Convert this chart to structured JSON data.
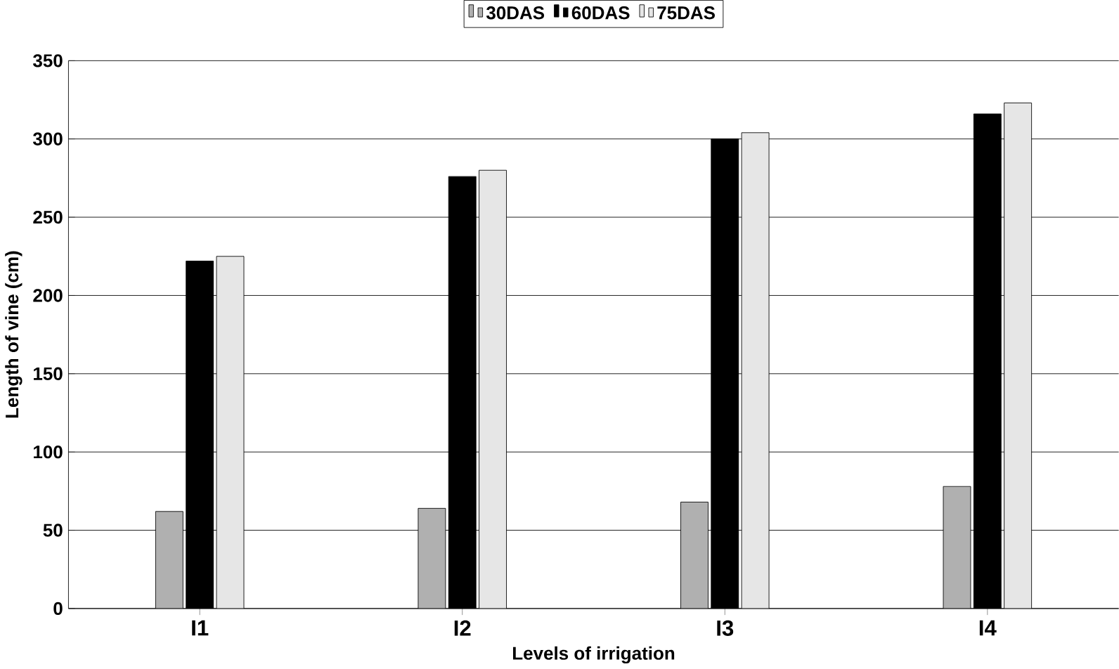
{
  "chart_data": {
    "type": "bar",
    "xlabel": "Levels of irrigation",
    "ylabel": "Length of vine (cm)",
    "categories": [
      "I1",
      "I2",
      "I3",
      "I4"
    ],
    "series": [
      {
        "name": "30DAS",
        "color": "#b0b0b0",
        "values": [
          62,
          64,
          68,
          78
        ]
      },
      {
        "name": "60DAS",
        "color": "#000000",
        "values": [
          222,
          276,
          300,
          316
        ]
      },
      {
        "name": "75DAS",
        "color": "#e6e6e6",
        "values": [
          225,
          280,
          304,
          323
        ]
      }
    ],
    "ylim": [
      0,
      350
    ],
    "yticks": [
      0,
      50,
      100,
      150,
      200,
      250,
      300,
      350
    ],
    "grid": "y",
    "legend": "top"
  }
}
